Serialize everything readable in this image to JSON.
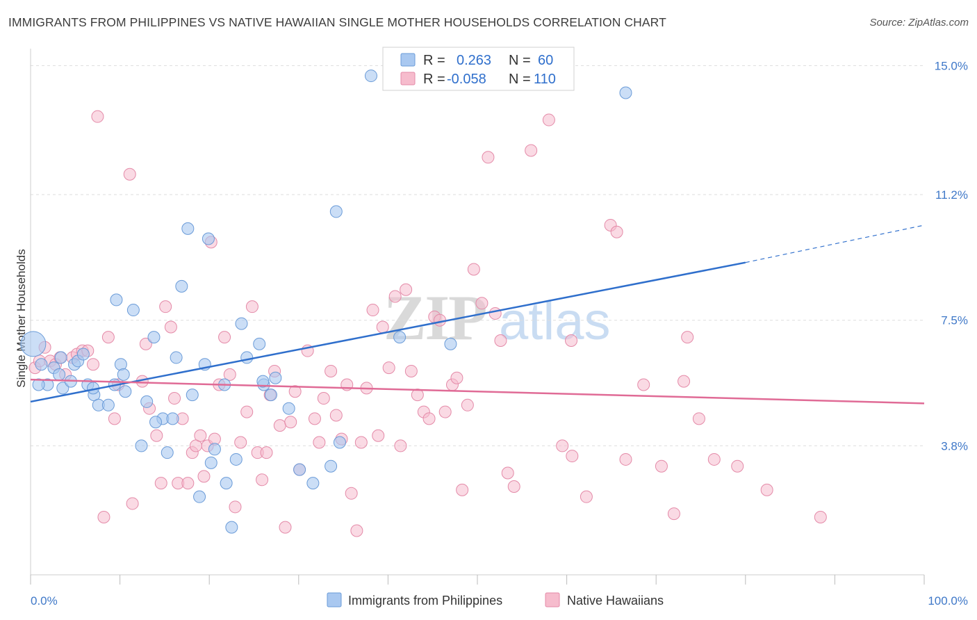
{
  "title": "IMMIGRANTS FROM PHILIPPINES VS NATIVE HAWAIIAN SINGLE MOTHER HOUSEHOLDS CORRELATION CHART",
  "source": "Source: ZipAtlas.com",
  "watermark": {
    "zip": "ZIP",
    "atlas": "atlas"
  },
  "colors": {
    "blue_fill": "#a9c8f0",
    "blue_stroke": "#6a9bd8",
    "blue_line": "#2f6fcc",
    "pink_fill": "#f6bccd",
    "pink_stroke": "#e48aa8",
    "pink_line": "#e06b96",
    "grid": "#dddddd",
    "tick_label": "#3f78c8"
  },
  "legend": {
    "rows": [
      {
        "r_label": "R =",
        "r_value": "0.263",
        "n_label": "N =",
        "n_value": "60"
      },
      {
        "r_label": "R =",
        "r_value": "-0.058",
        "n_label": "N =",
        "n_value": "110"
      }
    ]
  },
  "chart_data": {
    "type": "scatter",
    "title": "IMMIGRANTS FROM PHILIPPINES VS NATIVE HAWAIIAN SINGLE MOTHER HOUSEHOLDS CORRELATION CHART",
    "xlabel": "",
    "ylabel": "Single Mother Households",
    "xlim": [
      0,
      100
    ],
    "ylim": [
      0,
      15.5
    ],
    "x_tick_labels": [
      "0.0%",
      "100.0%"
    ],
    "y_ticks": [
      3.8,
      7.5,
      11.2,
      15.0
    ],
    "y_tick_labels": [
      "3.8%",
      "7.5%",
      "11.2%",
      "15.0%"
    ],
    "grid": true,
    "legend_position": "top-center",
    "series": [
      {
        "name": "Immigrants from Philippines",
        "color": "#a9c8f0",
        "R": 0.263,
        "N": 60,
        "trend": {
          "x": [
            0,
            80
          ],
          "y": [
            5.1,
            9.2
          ],
          "dashed_to": [
            100,
            10.3
          ]
        },
        "points": [
          [
            0.3,
            6.8
          ],
          [
            1.2,
            6.2
          ],
          [
            1.9,
            5.6
          ],
          [
            2.6,
            6.1
          ],
          [
            3.2,
            5.9
          ],
          [
            3.6,
            5.5
          ],
          [
            4.5,
            5.7
          ],
          [
            4.9,
            6.2
          ],
          [
            5.3,
            6.3
          ],
          [
            5.9,
            6.5
          ],
          [
            6.4,
            5.6
          ],
          [
            7.1,
            5.3
          ],
          [
            7.6,
            5.0
          ],
          [
            8.7,
            5.0
          ],
          [
            9.6,
            8.1
          ],
          [
            10.1,
            6.2
          ],
          [
            10.6,
            5.4
          ],
          [
            11.5,
            7.8
          ],
          [
            12.4,
            3.8
          ],
          [
            13.0,
            5.1
          ],
          [
            13.8,
            7.0
          ],
          [
            14.8,
            4.6
          ],
          [
            15.3,
            3.6
          ],
          [
            15.9,
            4.6
          ],
          [
            16.3,
            6.4
          ],
          [
            16.9,
            8.5
          ],
          [
            17.6,
            10.2
          ],
          [
            18.1,
            5.3
          ],
          [
            18.9,
            2.3
          ],
          [
            19.5,
            6.2
          ],
          [
            19.9,
            9.9
          ],
          [
            20.2,
            3.3
          ],
          [
            20.6,
            3.7
          ],
          [
            21.7,
            5.6
          ],
          [
            21.9,
            2.7
          ],
          [
            22.5,
            1.4
          ],
          [
            23.0,
            3.4
          ],
          [
            23.6,
            7.4
          ],
          [
            24.2,
            6.4
          ],
          [
            25.6,
            6.8
          ],
          [
            26.1,
            5.6
          ],
          [
            26.9,
            5.3
          ],
          [
            27.4,
            5.8
          ],
          [
            28.9,
            4.9
          ],
          [
            30.1,
            3.1
          ],
          [
            31.6,
            2.7
          ],
          [
            33.6,
            3.2
          ],
          [
            34.2,
            10.7
          ],
          [
            34.6,
            3.9
          ],
          [
            38.1,
            14.7
          ],
          [
            41.3,
            7.0
          ],
          [
            66.6,
            14.2
          ],
          [
            47.0,
            6.8
          ],
          [
            3.4,
            6.4
          ],
          [
            7.0,
            5.5
          ],
          [
            9.4,
            5.6
          ],
          [
            14.0,
            4.5
          ],
          [
            26.0,
            5.7
          ],
          [
            10.4,
            5.9
          ],
          [
            0.9,
            5.6
          ]
        ]
      },
      {
        "name": "Native Hawaiians",
        "color": "#f6bccd",
        "R": -0.058,
        "N": 110,
        "trend": {
          "x": [
            0,
            100
          ],
          "y": [
            5.75,
            5.05
          ]
        },
        "points": [
          [
            0.5,
            6.1
          ],
          [
            1.0,
            6.3
          ],
          [
            1.6,
            6.7
          ],
          [
            2.2,
            6.3
          ],
          [
            2.8,
            6.2
          ],
          [
            3.3,
            6.4
          ],
          [
            3.9,
            5.9
          ],
          [
            4.7,
            6.4
          ],
          [
            5.2,
            6.5
          ],
          [
            5.8,
            6.6
          ],
          [
            6.4,
            6.6
          ],
          [
            7.0,
            6.2
          ],
          [
            7.5,
            13.5
          ],
          [
            8.2,
            1.7
          ],
          [
            8.7,
            7.0
          ],
          [
            9.4,
            4.6
          ],
          [
            9.8,
            5.6
          ],
          [
            11.1,
            11.8
          ],
          [
            11.4,
            2.1
          ],
          [
            12.5,
            5.7
          ],
          [
            12.9,
            6.8
          ],
          [
            13.3,
            4.9
          ],
          [
            14.1,
            4.1
          ],
          [
            14.6,
            2.7
          ],
          [
            15.1,
            7.9
          ],
          [
            15.7,
            7.3
          ],
          [
            16.1,
            5.2
          ],
          [
            16.5,
            2.7
          ],
          [
            17.0,
            4.6
          ],
          [
            17.6,
            2.7
          ],
          [
            18.1,
            3.6
          ],
          [
            18.5,
            3.8
          ],
          [
            19.0,
            4.1
          ],
          [
            19.4,
            2.9
          ],
          [
            19.8,
            3.8
          ],
          [
            20.2,
            9.8
          ],
          [
            20.6,
            4.0
          ],
          [
            21.1,
            5.6
          ],
          [
            21.7,
            7.0
          ],
          [
            22.3,
            5.9
          ],
          [
            22.9,
            2.0
          ],
          [
            23.5,
            3.9
          ],
          [
            24.2,
            4.8
          ],
          [
            24.8,
            7.9
          ],
          [
            25.4,
            3.6
          ],
          [
            25.9,
            2.8
          ],
          [
            26.4,
            3.6
          ],
          [
            26.8,
            5.3
          ],
          [
            27.3,
            6.0
          ],
          [
            27.9,
            4.4
          ],
          [
            28.5,
            1.4
          ],
          [
            29.1,
            4.5
          ],
          [
            29.6,
            5.4
          ],
          [
            30.1,
            3.1
          ],
          [
            31.0,
            6.6
          ],
          [
            31.8,
            4.6
          ],
          [
            32.3,
            3.9
          ],
          [
            32.8,
            5.2
          ],
          [
            33.6,
            6.0
          ],
          [
            34.2,
            4.7
          ],
          [
            34.8,
            4.0
          ],
          [
            35.4,
            5.6
          ],
          [
            35.9,
            2.4
          ],
          [
            36.5,
            1.3
          ],
          [
            37.0,
            3.9
          ],
          [
            37.6,
            5.5
          ],
          [
            38.3,
            7.8
          ],
          [
            38.9,
            4.1
          ],
          [
            39.4,
            7.3
          ],
          [
            40.1,
            6.1
          ],
          [
            40.8,
            8.2
          ],
          [
            41.4,
            3.8
          ],
          [
            42.0,
            8.4
          ],
          [
            42.6,
            6.0
          ],
          [
            43.3,
            5.3
          ],
          [
            44.0,
            4.8
          ],
          [
            44.6,
            4.6
          ],
          [
            45.2,
            7.6
          ],
          [
            45.8,
            7.5
          ],
          [
            46.4,
            4.8
          ],
          [
            47.2,
            5.6
          ],
          [
            47.7,
            5.8
          ],
          [
            48.3,
            2.5
          ],
          [
            48.9,
            5.0
          ],
          [
            49.6,
            9.0
          ],
          [
            50.5,
            8.0
          ],
          [
            51.2,
            12.3
          ],
          [
            52.0,
            7.7
          ],
          [
            52.6,
            6.9
          ],
          [
            53.4,
            3.0
          ],
          [
            54.1,
            2.6
          ],
          [
            56.0,
            12.5
          ],
          [
            58.0,
            13.4
          ],
          [
            59.5,
            3.8
          ],
          [
            60.6,
            3.5
          ],
          [
            62.2,
            2.3
          ],
          [
            64.9,
            10.3
          ],
          [
            65.6,
            10.1
          ],
          [
            66.6,
            3.4
          ],
          [
            68.6,
            5.6
          ],
          [
            70.6,
            3.2
          ],
          [
            72.0,
            1.8
          ],
          [
            73.1,
            5.7
          ],
          [
            74.8,
            4.6
          ],
          [
            76.5,
            3.4
          ],
          [
            79.1,
            3.2
          ],
          [
            82.4,
            2.5
          ],
          [
            88.4,
            1.7
          ],
          [
            73.5,
            7.0
          ],
          [
            60.5,
            6.9
          ]
        ]
      }
    ]
  },
  "bottom_legend": [
    {
      "label": "Immigrants from Philippines"
    },
    {
      "label": "Native Hawaiians"
    }
  ]
}
